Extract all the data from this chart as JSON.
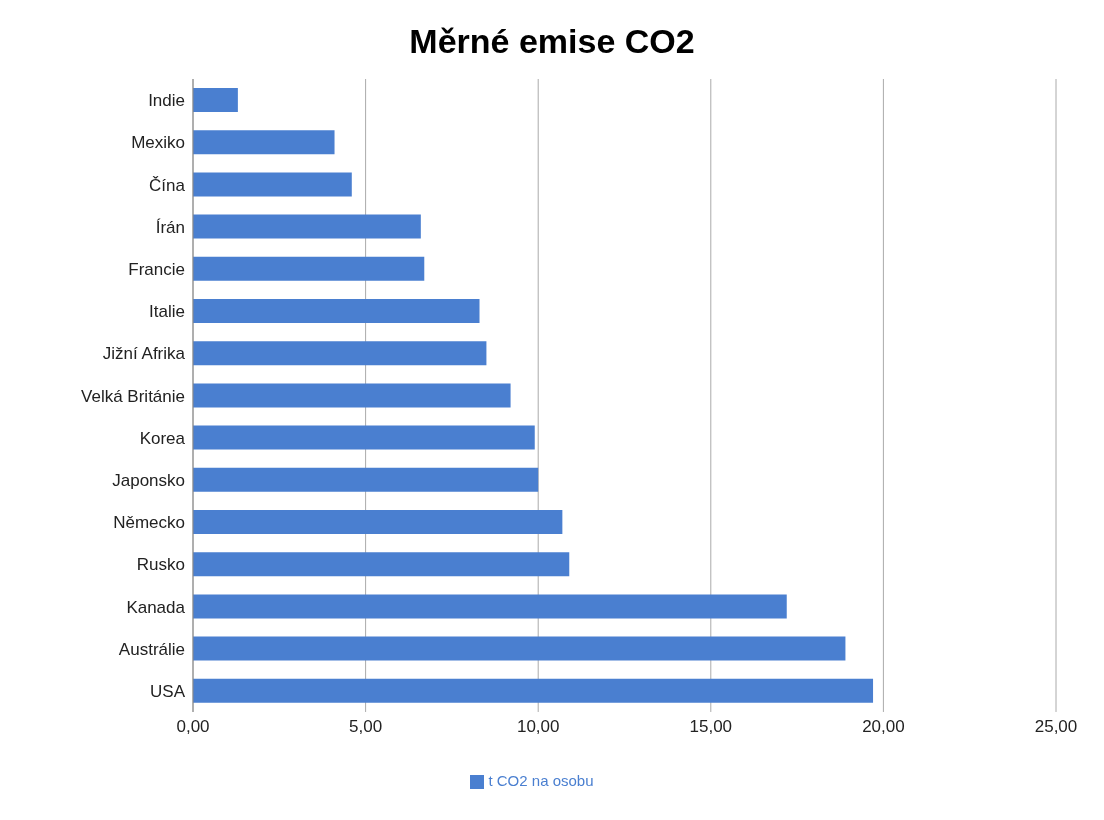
{
  "chart_data": {
    "type": "bar",
    "orientation": "horizontal",
    "title": "Měrné emise CO2",
    "categories": [
      "Indie",
      "Mexiko",
      "Čína",
      "Írán",
      "Francie",
      "Italie",
      "Jižní Afrika",
      "Velká Británie",
      "Korea",
      "Japonsko",
      "Německo",
      "Rusko",
      "Kanada",
      "Austrálie",
      "USA"
    ],
    "series": [
      {
        "name": "t CO2 na osobu",
        "color": "#4a7fd0",
        "values": [
          1.3,
          4.1,
          4.6,
          6.6,
          6.7,
          8.3,
          8.5,
          9.2,
          9.9,
          10.0,
          10.7,
          10.9,
          17.2,
          18.9,
          19.7
        ]
      }
    ],
    "xlim": [
      0,
      25
    ],
    "xticks": [
      {
        "value": 0,
        "label": "0,00"
      },
      {
        "value": 5,
        "label": "5,00"
      },
      {
        "value": 10,
        "label": "10,00"
      },
      {
        "value": 15,
        "label": "15,00"
      },
      {
        "value": 20,
        "label": "20,00"
      },
      {
        "value": 25,
        "label": "25,00"
      }
    ],
    "grid": "x",
    "legend": "bottom"
  }
}
